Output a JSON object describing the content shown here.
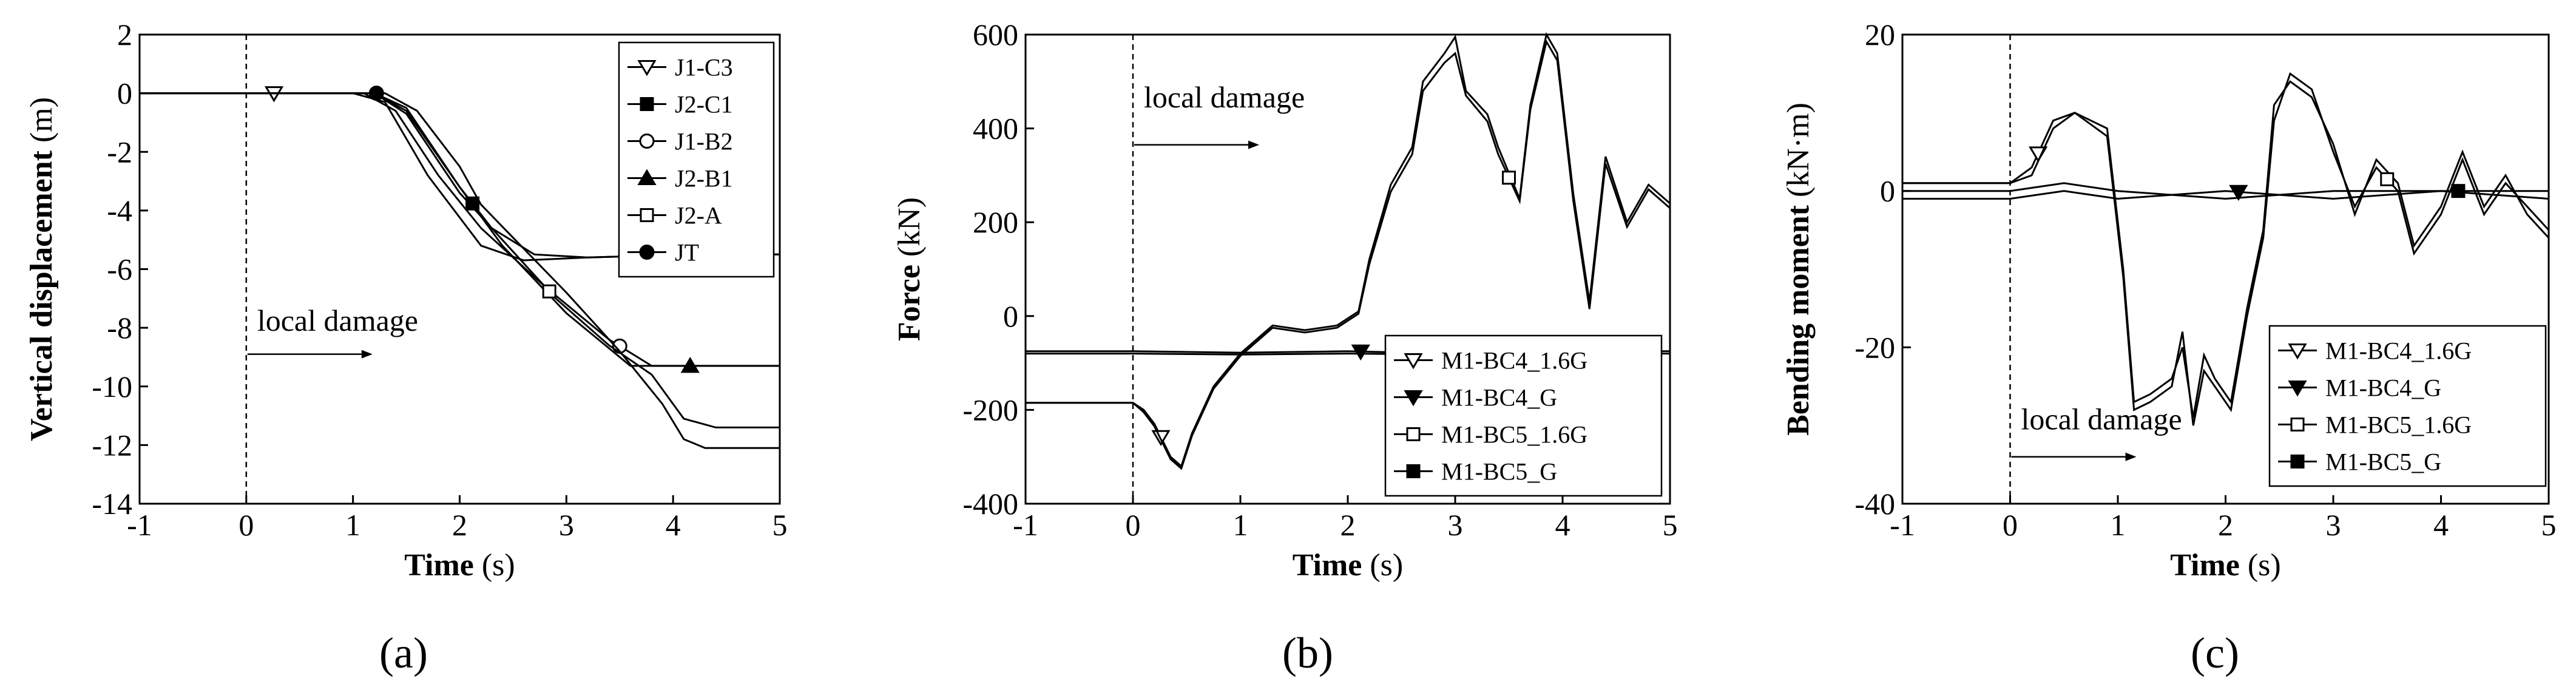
{
  "figure": {
    "panel_labels": [
      "(a)",
      "(b)",
      "(c)"
    ],
    "annotation": "local damage"
  },
  "chart_data": [
    {
      "type": "line",
      "panel": "(a)",
      "xlabel": "Time",
      "xunit": "(s)",
      "ylabel": "Vertical displacement",
      "yunit": "(m)",
      "xlim": [
        -1,
        5
      ],
      "ylim": [
        -14,
        2
      ],
      "xticks": [
        -1,
        0,
        1,
        2,
        3,
        4,
        5
      ],
      "yticks": [
        2,
        0,
        -2,
        -4,
        -6,
        -8,
        -10,
        -12,
        -14
      ],
      "damage_time": 0,
      "annotation": "local damage",
      "legend_position": "top-right",
      "series": [
        {
          "name": "J1-C3",
          "marker": "triangle-down-open",
          "points": [
            [
              -1,
              0
            ],
            [
              0.3,
              0
            ],
            [
              1,
              0
            ],
            [
              1.3,
              -0.3
            ],
            [
              1.7,
              -2.8
            ],
            [
              2.2,
              -5.2
            ],
            [
              2.6,
              -5.7
            ],
            [
              3.2,
              -5.6
            ],
            [
              4.2,
              -5.5
            ],
            [
              5,
              -5.5
            ]
          ]
        },
        {
          "name": "J2-C1",
          "marker": "square-filled",
          "points": [
            [
              -1,
              0
            ],
            [
              0.3,
              0
            ],
            [
              1.2,
              0
            ],
            [
              1.5,
              -0.6
            ],
            [
              2,
              -3.2
            ],
            [
              2.3,
              -4.6
            ],
            [
              2.7,
              -5.5
            ],
            [
              3.2,
              -5.6
            ],
            [
              4.2,
              -5.5
            ],
            [
              5,
              -5.5
            ]
          ]
        },
        {
          "name": "J1-B2",
          "marker": "circle-open",
          "points": [
            [
              -1,
              0
            ],
            [
              0.3,
              0
            ],
            [
              1.1,
              0
            ],
            [
              1.4,
              -0.6
            ],
            [
              1.8,
              -2.8
            ],
            [
              2.2,
              -4.6
            ],
            [
              2.8,
              -6.6
            ],
            [
              3.4,
              -8.4
            ],
            [
              3.8,
              -9.3
            ],
            [
              4.2,
              -9.3
            ],
            [
              5,
              -9.3
            ]
          ]
        },
        {
          "name": "J2-B1",
          "marker": "triangle-up-filled",
          "points": [
            [
              -1,
              0
            ],
            [
              0.3,
              0
            ],
            [
              1.2,
              0
            ],
            [
              1.5,
              -0.5
            ],
            [
              2,
              -3.2
            ],
            [
              2.4,
              -5.2
            ],
            [
              3,
              -7.5
            ],
            [
              3.6,
              -9.3
            ],
            [
              4.2,
              -9.3
            ],
            [
              5,
              -9.3
            ]
          ]
        },
        {
          "name": "J2-A",
          "marker": "square-open",
          "points": [
            [
              -1,
              0
            ],
            [
              0.3,
              0
            ],
            [
              1.2,
              0
            ],
            [
              1.5,
              -0.7
            ],
            [
              2,
              -3.4
            ],
            [
              2.4,
              -5
            ],
            [
              2.9,
              -7
            ],
            [
              3.4,
              -8.6
            ],
            [
              3.8,
              -9.6
            ],
            [
              4.1,
              -11.1
            ],
            [
              4.4,
              -11.4
            ],
            [
              5,
              -11.4
            ]
          ]
        },
        {
          "name": "JT",
          "marker": "circle-filled",
          "points": [
            [
              -1,
              0
            ],
            [
              0.3,
              0
            ],
            [
              1.3,
              0
            ],
            [
              1.6,
              -0.6
            ],
            [
              2,
              -2.5
            ],
            [
              2.2,
              -3.8
            ],
            [
              2.6,
              -5.3
            ],
            [
              3,
              -6.8
            ],
            [
              3.5,
              -8.8
            ],
            [
              3.9,
              -10.6
            ],
            [
              4.1,
              -11.8
            ],
            [
              4.3,
              -12.1
            ],
            [
              5,
              -12.1
            ]
          ]
        }
      ]
    },
    {
      "type": "line",
      "panel": "(b)",
      "xlabel": "Time",
      "xunit": "(s)",
      "ylabel": "Force",
      "yunit": "(kN)",
      "xlim": [
        -1,
        5
      ],
      "ylim": [
        -400,
        600
      ],
      "xticks": [
        -1,
        0,
        1,
        2,
        3,
        4,
        5
      ],
      "yticks": [
        600,
        400,
        200,
        0,
        -200,
        -400
      ],
      "damage_time": 0,
      "annotation": "local damage",
      "legend_position": "bottom-right",
      "series": [
        {
          "name": "M1-BC4_1.6G",
          "marker": "triangle-down-open",
          "points": [
            [
              -1,
              -185
            ],
            [
              0,
              -185
            ],
            [
              0.1,
              -200
            ],
            [
              0.2,
              -230
            ],
            [
              0.35,
              -300
            ],
            [
              0.45,
              -320
            ],
            [
              0.55,
              -250
            ],
            [
              0.75,
              -150
            ],
            [
              1,
              -80
            ],
            [
              1.3,
              -20
            ],
            [
              1.6,
              -30
            ],
            [
              1.9,
              -20
            ],
            [
              2.1,
              10
            ],
            [
              2.2,
              120
            ],
            [
              2.4,
              280
            ],
            [
              2.6,
              360
            ],
            [
              2.7,
              500
            ],
            [
              2.9,
              560
            ],
            [
              3,
              595
            ],
            [
              3.1,
              480
            ],
            [
              3.3,
              430
            ],
            [
              3.4,
              360
            ],
            [
              3.6,
              250
            ],
            [
              3.7,
              450
            ],
            [
              3.85,
              600
            ],
            [
              3.95,
              560
            ],
            [
              4.1,
              260
            ],
            [
              4.25,
              30
            ],
            [
              4.4,
              340
            ],
            [
              4.6,
              200
            ],
            [
              4.8,
              280
            ],
            [
              5,
              240
            ]
          ]
        },
        {
          "name": "M1-BC4_G",
          "marker": "triangle-down-filled",
          "points": [
            [
              -1,
              -75
            ],
            [
              0,
              -75
            ],
            [
              1,
              -78
            ],
            [
              2,
              -75
            ],
            [
              3,
              -80
            ],
            [
              4,
              -75
            ],
            [
              5,
              -75
            ]
          ]
        },
        {
          "name": "M1-BC5_1.6G",
          "marker": "square-open",
          "points": [
            [
              -1,
              -185
            ],
            [
              0,
              -185
            ],
            [
              0.1,
              -205
            ],
            [
              0.2,
              -235
            ],
            [
              0.35,
              -305
            ],
            [
              0.45,
              -325
            ],
            [
              0.55,
              -255
            ],
            [
              0.75,
              -155
            ],
            [
              1,
              -85
            ],
            [
              1.3,
              -25
            ],
            [
              1.6,
              -35
            ],
            [
              1.9,
              -25
            ],
            [
              2.1,
              5
            ],
            [
              2.2,
              110
            ],
            [
              2.4,
              265
            ],
            [
              2.6,
              345
            ],
            [
              2.7,
              480
            ],
            [
              2.9,
              540
            ],
            [
              3,
              560
            ],
            [
              3.1,
              470
            ],
            [
              3.3,
              415
            ],
            [
              3.4,
              345
            ],
            [
              3.6,
              245
            ],
            [
              3.7,
              440
            ],
            [
              3.85,
              585
            ],
            [
              3.95,
              545
            ],
            [
              4.1,
              245
            ],
            [
              4.25,
              15
            ],
            [
              4.4,
              325
            ],
            [
              4.6,
              190
            ],
            [
              4.8,
              270
            ],
            [
              5,
              230
            ]
          ]
        },
        {
          "name": "M1-BC5_G",
          "marker": "square-filled",
          "points": [
            [
              -1,
              -80
            ],
            [
              0,
              -80
            ],
            [
              1,
              -82
            ],
            [
              2,
              -80
            ],
            [
              3,
              -82
            ],
            [
              4,
              -80
            ],
            [
              5,
              -80
            ]
          ]
        }
      ]
    },
    {
      "type": "line",
      "panel": "(c)",
      "xlabel": "Time",
      "xunit": "(s)",
      "ylabel": "Bending moment",
      "yunit": "(kN·m)",
      "xlim": [
        -1,
        5
      ],
      "ylim": [
        -40,
        20
      ],
      "xticks": [
        -1,
        0,
        1,
        2,
        3,
        4,
        5
      ],
      "yticks": [
        20,
        0,
        -20,
        -40
      ],
      "damage_time": 0,
      "annotation": "local damage",
      "legend_position": "right",
      "series": [
        {
          "name": "M1-BC4_1.6G",
          "marker": "triangle-down-open",
          "points": [
            [
              -1,
              1
            ],
            [
              0,
              1
            ],
            [
              0.2,
              3
            ],
            [
              0.4,
              9
            ],
            [
              0.6,
              10
            ],
            [
              0.9,
              8
            ],
            [
              1.05,
              -10
            ],
            [
              1.15,
              -27
            ],
            [
              1.3,
              -26
            ],
            [
              1.5,
              -24
            ],
            [
              1.6,
              -20
            ],
            [
              1.7,
              -29
            ],
            [
              1.8,
              -21
            ],
            [
              1.9,
              -24
            ],
            [
              2.05,
              -27
            ],
            [
              2.2,
              -15
            ],
            [
              2.35,
              -5
            ],
            [
              2.45,
              11
            ],
            [
              2.6,
              14
            ],
            [
              2.8,
              12
            ],
            [
              3,
              6
            ],
            [
              3.2,
              -3
            ],
            [
              3.4,
              4
            ],
            [
              3.6,
              1
            ],
            [
              3.75,
              -7
            ],
            [
              3.9,
              -4
            ],
            [
              4,
              -2
            ],
            [
              4.2,
              5
            ],
            [
              4.4,
              -2
            ],
            [
              4.6,
              2
            ],
            [
              4.8,
              -3
            ],
            [
              5,
              -6
            ]
          ]
        },
        {
          "name": "M1-BC4_G",
          "marker": "triangle-down-filled",
          "points": [
            [
              -1,
              -1
            ],
            [
              0,
              -1
            ],
            [
              0.5,
              0
            ],
            [
              1,
              -1
            ],
            [
              2,
              0
            ],
            [
              3,
              -1
            ],
            [
              4,
              0
            ],
            [
              5,
              -1
            ]
          ]
        },
        {
          "name": "M1-BC5_1.6G",
          "marker": "square-open",
          "points": [
            [
              -1,
              1
            ],
            [
              0,
              1
            ],
            [
              0.2,
              2
            ],
            [
              0.4,
              8
            ],
            [
              0.6,
              10
            ],
            [
              0.9,
              7
            ],
            [
              1.05,
              -11
            ],
            [
              1.15,
              -28
            ],
            [
              1.3,
              -27
            ],
            [
              1.5,
              -25
            ],
            [
              1.6,
              -18
            ],
            [
              1.7,
              -30
            ],
            [
              1.8,
              -23
            ],
            [
              1.9,
              -25
            ],
            [
              2.05,
              -28
            ],
            [
              2.2,
              -16
            ],
            [
              2.35,
              -6
            ],
            [
              2.45,
              9
            ],
            [
              2.6,
              15
            ],
            [
              2.8,
              13
            ],
            [
              3,
              5
            ],
            [
              3.2,
              -2
            ],
            [
              3.4,
              3
            ],
            [
              3.6,
              0
            ],
            [
              3.75,
              -8
            ],
            [
              3.9,
              -5
            ],
            [
              4,
              -3
            ],
            [
              4.2,
              4
            ],
            [
              4.4,
              -3
            ],
            [
              4.6,
              1
            ],
            [
              4.8,
              -2
            ],
            [
              5,
              -5
            ]
          ]
        },
        {
          "name": "M1-BC5_G",
          "marker": "square-filled",
          "points": [
            [
              -1,
              0
            ],
            [
              0,
              0
            ],
            [
              0.5,
              1
            ],
            [
              1,
              0
            ],
            [
              2,
              -1
            ],
            [
              3,
              0
            ],
            [
              4,
              0
            ],
            [
              5,
              0
            ]
          ]
        }
      ]
    }
  ]
}
